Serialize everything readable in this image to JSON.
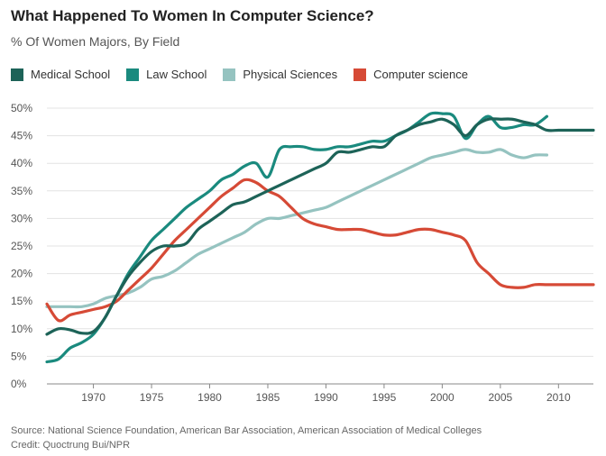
{
  "chart_data": {
    "type": "line",
    "title": "What Happened To Women In Computer Science?",
    "subtitle": "% Of Women Majors, By Field",
    "xlabel": "",
    "ylabel": "",
    "xlim": [
      1966,
      2013
    ],
    "ylim": [
      0,
      50
    ],
    "x_ticks": [
      1970,
      1975,
      1980,
      1985,
      1990,
      1995,
      2000,
      2005,
      2010
    ],
    "y_ticks": [
      0,
      5,
      10,
      15,
      20,
      25,
      30,
      35,
      40,
      45,
      50
    ],
    "y_tick_labels": [
      "0%",
      "5%",
      "10%",
      "15%",
      "20%",
      "25%",
      "30%",
      "35%",
      "40%",
      "45%",
      "50%"
    ],
    "grid": true,
    "legend_position": "top-left",
    "series": [
      {
        "name": "Medical School",
        "color": "#1d6358",
        "x": [
          1966,
          1967,
          1968,
          1969,
          1970,
          1971,
          1972,
          1973,
          1974,
          1975,
          1976,
          1977,
          1978,
          1979,
          1980,
          1981,
          1982,
          1983,
          1984,
          1985,
          1986,
          1987,
          1988,
          1989,
          1990,
          1991,
          1992,
          1993,
          1994,
          1995,
          1996,
          1997,
          1998,
          1999,
          2000,
          2001,
          2002,
          2003,
          2004,
          2005,
          2006,
          2007,
          2008,
          2009,
          2010,
          2011,
          2012,
          2013
        ],
        "values": [
          9,
          10,
          9.8,
          9.2,
          9.5,
          12,
          16,
          19.5,
          22,
          24,
          25,
          25,
          25.5,
          28,
          29.5,
          31,
          32.5,
          33,
          34,
          35,
          36,
          37,
          38,
          39,
          40,
          42,
          42,
          42.5,
          43,
          43,
          45,
          46,
          47,
          47.5,
          48,
          47,
          45,
          47,
          48,
          48,
          48,
          47.5,
          47,
          46,
          46,
          46,
          46,
          46
        ]
      },
      {
        "name": "Law School",
        "color": "#1a8a7e",
        "x": [
          1966,
          1967,
          1968,
          1969,
          1970,
          1971,
          1972,
          1973,
          1974,
          1975,
          1976,
          1977,
          1978,
          1979,
          1980,
          1981,
          1982,
          1983,
          1984,
          1985,
          1986,
          1987,
          1988,
          1989,
          1990,
          1991,
          1992,
          1993,
          1994,
          1995,
          1996,
          1997,
          1998,
          1999,
          2000,
          2001,
          2002,
          2003,
          2004,
          2005,
          2006,
          2007,
          2008,
          2009
        ],
        "values": [
          4,
          4.5,
          6.5,
          7.5,
          9,
          12,
          16,
          20,
          23,
          26,
          28,
          30,
          32,
          33.5,
          35,
          37,
          38,
          39.5,
          40,
          37.5,
          42.5,
          43,
          43,
          42.5,
          42.5,
          43,
          43,
          43.5,
          44,
          44,
          45,
          46,
          47.5,
          49,
          49,
          48.5,
          44.5,
          47,
          48.5,
          46.5,
          46.5,
          47,
          47,
          48.5
        ]
      },
      {
        "name": "Physical Sciences",
        "color": "#95c3c0",
        "x": [
          1966,
          1967,
          1968,
          1969,
          1970,
          1971,
          1972,
          1973,
          1974,
          1975,
          1976,
          1977,
          1978,
          1979,
          1980,
          1981,
          1982,
          1983,
          1984,
          1985,
          1986,
          1987,
          1988,
          1989,
          1990,
          1991,
          1992,
          1993,
          1994,
          1995,
          1996,
          1997,
          1998,
          1999,
          2000,
          2001,
          2002,
          2003,
          2004,
          2005,
          2006,
          2007,
          2008,
          2009
        ],
        "values": [
          14,
          14,
          14,
          14,
          14.5,
          15.5,
          16,
          16.5,
          17.5,
          19,
          19.5,
          20.5,
          22,
          23.5,
          24.5,
          25.5,
          26.5,
          27.5,
          29,
          30,
          30,
          30.5,
          31,
          31.5,
          32,
          33,
          34,
          35,
          36,
          37,
          38,
          39,
          40,
          41,
          41.5,
          42,
          42.5,
          42,
          42,
          42.5,
          41.5,
          41,
          41.5,
          41.5
        ]
      },
      {
        "name": "Computer science",
        "color": "#d64a36",
        "x": [
          1966,
          1967,
          1968,
          1969,
          1970,
          1971,
          1972,
          1973,
          1974,
          1975,
          1976,
          1977,
          1978,
          1979,
          1980,
          1981,
          1982,
          1983,
          1984,
          1985,
          1986,
          1987,
          1988,
          1989,
          1990,
          1991,
          1992,
          1993,
          1994,
          1995,
          1996,
          1997,
          1998,
          1999,
          2000,
          2001,
          2002,
          2003,
          2004,
          2005,
          2006,
          2007,
          2008,
          2009,
          2010,
          2011,
          2012,
          2013
        ],
        "values": [
          14.5,
          11.5,
          12.5,
          13,
          13.5,
          14,
          15,
          17,
          19,
          21,
          23.5,
          26,
          28,
          30,
          32,
          34,
          35.5,
          37,
          36.5,
          35,
          34,
          32,
          30,
          29,
          28.5,
          28,
          28,
          28,
          27.5,
          27,
          27,
          27.5,
          28,
          28,
          27.5,
          27,
          26,
          22,
          20,
          18,
          17.5,
          17.5,
          18,
          18,
          18,
          18,
          18,
          18
        ]
      }
    ]
  },
  "footer": {
    "source": "Source: National Science Foundation, American Bar Association, American Association of Medical Colleges",
    "credit": "Credit: Quoctrung Bui/NPR"
  }
}
